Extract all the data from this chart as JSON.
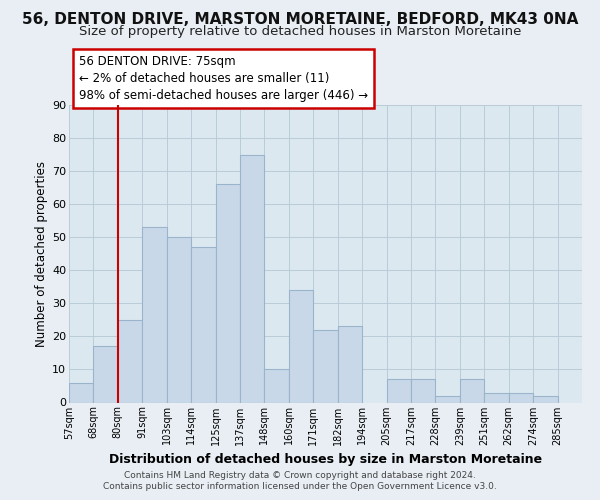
{
  "title": "56, DENTON DRIVE, MARSTON MORETAINE, BEDFORD, MK43 0NA",
  "subtitle": "Size of property relative to detached houses in Marston Moretaine",
  "xlabel": "Distribution of detached houses by size in Marston Moretaine",
  "ylabel": "Number of detached properties",
  "footer_line1": "Contains HM Land Registry data © Crown copyright and database right 2024.",
  "footer_line2": "Contains public sector information licensed under the Open Government Licence v3.0.",
  "bin_labels": [
    "57sqm",
    "68sqm",
    "80sqm",
    "91sqm",
    "103sqm",
    "114sqm",
    "125sqm",
    "137sqm",
    "148sqm",
    "160sqm",
    "171sqm",
    "182sqm",
    "194sqm",
    "205sqm",
    "217sqm",
    "228sqm",
    "239sqm",
    "251sqm",
    "262sqm",
    "274sqm",
    "285sqm"
  ],
  "bar_values": [
    6,
    17,
    25,
    53,
    50,
    47,
    66,
    75,
    10,
    34,
    22,
    23,
    0,
    7,
    7,
    2,
    7,
    3,
    3,
    2,
    0
  ],
  "bar_color": "#c8d8e8",
  "bar_edge_color": "#9ab4cc",
  "annotation_title": "56 DENTON DRIVE: 75sqm",
  "annotation_line1": "← 2% of detached houses are smaller (11)",
  "annotation_line2": "98% of semi-detached houses are larger (446) →",
  "annotation_box_color": "#ffffff",
  "annotation_box_edge_color": "#cc0000",
  "ylim": [
    0,
    90
  ],
  "yticks": [
    0,
    10,
    20,
    30,
    40,
    50,
    60,
    70,
    80,
    90
  ],
  "background_color": "#e8eef4",
  "plot_background_color": "#dce8f0",
  "grid_color": "#b8ccd8",
  "title_fontsize": 11,
  "subtitle_fontsize": 9.5,
  "red_line_color": "#cc0000",
  "red_line_bar_index": 2
}
